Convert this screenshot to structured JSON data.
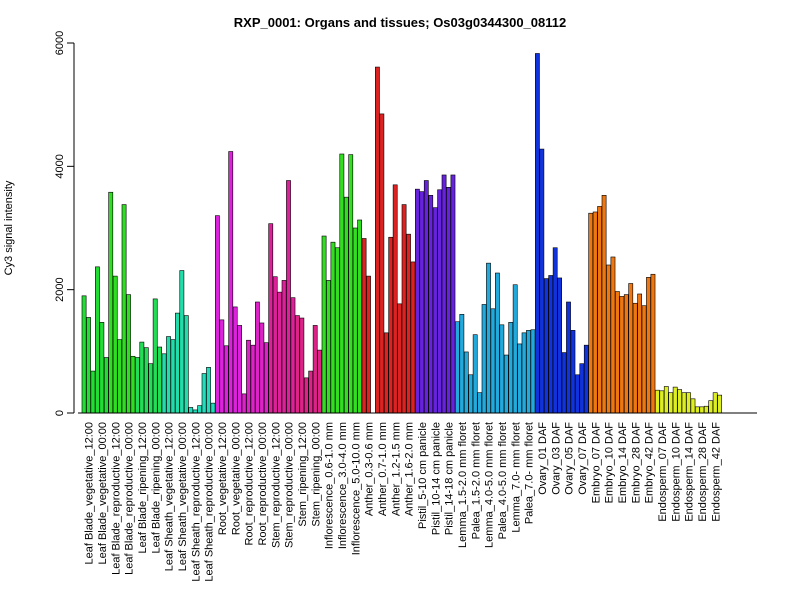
{
  "chart_data": {
    "type": "bar",
    "title": "RXP_0001: Organs and tissues; Os03g0344300_08112",
    "xlabel": "",
    "ylabel": "Cy3 signal intensity",
    "ylim": [
      0,
      6000
    ],
    "yticks": [
      0,
      2000,
      4000,
      6000
    ],
    "grid": false,
    "legend": "none",
    "categories": [
      "Leaf Blade_vegetative_12:00",
      "Leaf Blade_vegetative_00:00",
      "Leaf Blade_reproductive_12:00",
      "Leaf Blade_reproductive_00:00",
      "Leaf Blade_ripening_12:00",
      "Leaf Blade_ripening_00:00",
      "Leaf Sheath_vegetative_12:00",
      "Leaf Sheath_vegetative_00:00",
      "Leaf Sheath_reproductive_12:00",
      "Leaf Sheath_reproductive_00:00",
      "Root_vegetative_12:00",
      "Root_vegetative_00:00",
      "Root_reproductive_12:00",
      "Root_reproductive_00:00",
      "Stem_reproductive_12:00",
      "Stem_reproductive_00:00",
      "Stem_ripening_12:00",
      "Stem_ripening_00:00",
      "Inflorescence_0.6-1.0 mm",
      "Inflorescence_3.0-4.0 mm",
      "Inflorescence_5.0-10.0 mm",
      "Anther_0.3-0.6 mm",
      "Anther_0.7-1.0 mm",
      "Anther_1.2-1.5 mm",
      "Anther_1.6-2.0 mm",
      "Pistil_5-10 cm panicle",
      "Pistil_10-14 cm panicle",
      "Pistil_14-18 cm panicle",
      "Lemma_1.5-2.0 mm floret",
      "Palea_1.5-2.0 mm floret",
      "Lemma_4.0-5.0 mm floret",
      "Palea_4.0-5.0 mm floret",
      "Lemma_7.0- mm floret",
      "Palea_7.0- mm floret",
      "Ovary_01 DAF",
      "Ovary_03 DAF",
      "Ovary_05 DAF",
      "Ovary_07 DAF",
      "Embryo_07 DAF",
      "Embryo_10 DAF",
      "Embryo_14 DAF",
      "Embryo_28 DAF",
      "Embryo_42 DAF",
      "Endosperm_07 DAF",
      "Endosperm_10 DAF",
      "Endosperm_14 DAF",
      "Endosperm_28 DAF",
      "Endosperm_42 DAF"
    ],
    "groups": [
      {
        "values": [
          1900,
          1550,
          680
        ],
        "color": "#22dd33"
      },
      {
        "values": [
          2370,
          1470,
          900
        ],
        "color": "#22dd33"
      },
      {
        "values": [
          3580,
          2220,
          1190
        ],
        "color": "#2fdd22"
      },
      {
        "values": [
          3380,
          1920,
          920
        ],
        "color": "#2fdd22"
      },
      {
        "values": [
          900,
          1150,
          1060
        ],
        "color": "#22dd55"
      },
      {
        "values": [
          800,
          1850,
          1070
        ],
        "color": "#22dd55"
      },
      {
        "values": [
          960,
          1240,
          1190
        ],
        "color": "#22ddaa"
      },
      {
        "values": [
          1620,
          2310,
          1580
        ],
        "color": "#22ddaa"
      },
      {
        "values": [
          90,
          50,
          120
        ],
        "color": "#22ddbb"
      },
      {
        "values": [
          640,
          740,
          160
        ],
        "color": "#22ddbb"
      },
      {
        "values": [
          3200,
          1510,
          1090
        ],
        "color": "#dd22dd"
      },
      {
        "values": [
          4240,
          1720,
          1420
        ],
        "color": "#dd22dd"
      },
      {
        "values": [
          310,
          1180,
          1100
        ],
        "color": "#dd22c8"
      },
      {
        "values": [
          1800,
          1460,
          1140
        ],
        "color": "#dd22c8"
      },
      {
        "values": [
          3070,
          2210,
          1960
        ],
        "color": "#dd2299"
      },
      {
        "values": [
          2150,
          3770,
          1870
        ],
        "color": "#dd2299"
      },
      {
        "values": [
          1580,
          1540,
          570
        ],
        "color": "#dd2288"
      },
      {
        "values": [
          680,
          1420,
          1020
        ],
        "color": "#dd2288"
      },
      {
        "values": [
          2870,
          2150,
          2770
        ],
        "color": "#33dd22"
      },
      {
        "values": [
          2680,
          4200,
          3500
        ],
        "color": "#33dd22"
      },
      {
        "values": [
          4190,
          3000,
          3130
        ],
        "color": "#33dd22"
      },
      {
        "values": [
          2830,
          2220
        ],
        "color": "#dd2222"
      },
      {
        "values": [
          5610,
          4850,
          1300
        ],
        "color": "#dd2222"
      },
      {
        "values": [
          2850,
          3700,
          1770
        ],
        "color": "#dd2222"
      },
      {
        "values": [
          3380,
          2900,
          2450
        ],
        "color": "#dd2222"
      },
      {
        "values": [
          3630,
          3590,
          3770
        ],
        "color": "#6622dd"
      },
      {
        "values": [
          3530,
          3330,
          3620
        ],
        "color": "#6622dd"
      },
      {
        "values": [
          3860,
          3660,
          3860
        ],
        "color": "#6622dd"
      },
      {
        "values": [
          1480,
          1600,
          990
        ],
        "color": "#22aadd"
      },
      {
        "values": [
          620,
          1270,
          330
        ],
        "color": "#22aadd"
      },
      {
        "values": [
          1760,
          2430,
          1690
        ],
        "color": "#22aadd"
      },
      {
        "values": [
          2270,
          1430,
          940
        ],
        "color": "#22aadd"
      },
      {
        "values": [
          1470,
          2080,
          1120
        ],
        "color": "#22aadd"
      },
      {
        "values": [
          1300,
          1340,
          1350
        ],
        "color": "#22aadd"
      },
      {
        "values": [
          5830,
          4280,
          2180
        ],
        "color": "#1133dd"
      },
      {
        "values": [
          2230,
          2680,
          2190
        ],
        "color": "#1133dd"
      },
      {
        "values": [
          980,
          1800,
          1340
        ],
        "color": "#1133dd"
      },
      {
        "values": [
          620,
          800,
          1100
        ],
        "color": "#1133dd"
      },
      {
        "values": [
          3240,
          3260,
          3350
        ],
        "color": "#ee7711"
      },
      {
        "values": [
          3530,
          2400,
          2530
        ],
        "color": "#ee7711"
      },
      {
        "values": [
          1970,
          1890,
          1920
        ],
        "color": "#ee7711"
      },
      {
        "values": [
          2100,
          1780,
          1930
        ],
        "color": "#ee7711"
      },
      {
        "values": [
          1740,
          2200,
          2250
        ],
        "color": "#ee7711"
      },
      {
        "values": [
          370,
          360,
          430
        ],
        "color": "#ddee22"
      },
      {
        "values": [
          330,
          420,
          380
        ],
        "color": "#ddee22"
      },
      {
        "values": [
          330,
          330,
          230
        ],
        "color": "#ddee22"
      },
      {
        "values": [
          100,
          100,
          110
        ],
        "color": "#ddee22"
      },
      {
        "values": [
          200,
          330,
          290
        ],
        "color": "#ddee22"
      }
    ]
  }
}
